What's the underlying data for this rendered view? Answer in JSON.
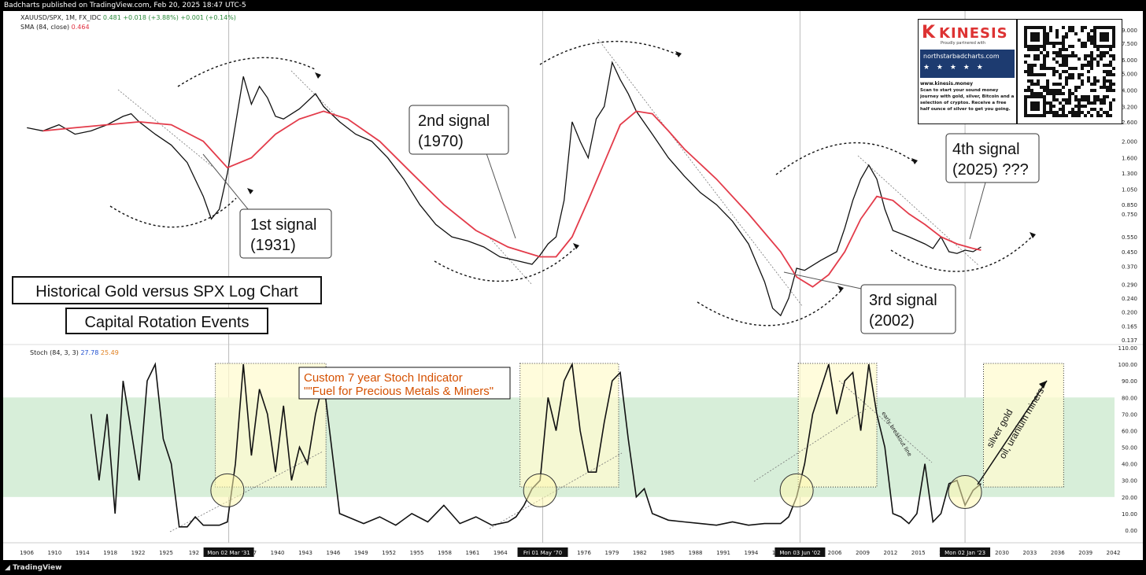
{
  "header": {
    "publisher": "Badcharts published on TradingView.com, Feb 20, 2025 18:47 UTC-5",
    "footer": "TradingView"
  },
  "legend": {
    "symbol": "XAUUSD/SPX, 1M, FX_IDC",
    "value": "0.481",
    "change": "+0.018 (+3.88%)",
    "change2": "+0.001 (+0.14%)",
    "sma_label": "SMA (84, close)",
    "sma_value": "0.464",
    "stoch_label": "Stoch (84, 3, 3)",
    "stoch_k": "27.78",
    "stoch_d": "25.49"
  },
  "annotations": {
    "title_box_1": "Historical Gold versus SPX Log Chart",
    "title_box_2": "Capital Rotation Events",
    "signal_1_line1": "1st signal",
    "signal_1_line2": "(1931)",
    "signal_2_line1": "2nd signal",
    "signal_2_line2": "(1970)",
    "signal_3_line1": "3rd signal",
    "signal_3_line2": "(2002)",
    "signal_4_line1": "4th signal",
    "signal_4_line2": "(2025) ???",
    "stoch_title_1": "Custom 7 year Stoch Indicator",
    "stoch_title_2": "\"\"Fuel for Precious Metals & Miners\"",
    "early_breakout": "early breakout line",
    "rotation_1": "silver gold",
    "rotation_2": "oil, uranium miners"
  },
  "ad": {
    "brand": "KINESIS",
    "brand_sub": "Proudly partnered with",
    "site": "northstarbadcharts.com",
    "stars": "★ ★ ★ ★ ★",
    "url": "www.kinesis.money",
    "description": "Scan to start your sound money journey with gold, silver, Bitcoin and a selection of cryptos. Receive a free half ounce of silver to get you going."
  },
  "chart_data": [
    {
      "type": "line",
      "name": "price-panel",
      "scale": "log",
      "y_tick_labels": [
        "9.000",
        "7.500",
        "6.000",
        "5.000",
        "4.000",
        "3.200",
        "2.600",
        "2.000",
        "1.600",
        "1.300",
        "1.050",
        "0.850",
        "0.750",
        "0.550",
        "0.450",
        "0.370",
        "0.290",
        "0.240",
        "0.200",
        "0.165",
        "0.137"
      ],
      "x_tick_labels": [
        "1906",
        "1910",
        "1914",
        "1918",
        "1922",
        "1925",
        "192",
        "34",
        "1937",
        "1940",
        "1943",
        "1946",
        "1949",
        "1952",
        "1955",
        "1958",
        "1961",
        "1964",
        "1967",
        "73",
        "1976",
        "1979",
        "1982",
        "1985",
        "1988",
        "1991",
        "1994",
        "1997",
        "2",
        "2006",
        "2009",
        "2012",
        "2015",
        "2018",
        "2027",
        "2030",
        "2033",
        "2036",
        "2039",
        "2042"
      ],
      "date_markers": [
        "Mon 02 Mar '31",
        "Fri 01 May '70",
        "Mon 03 Jun '02",
        "Mon 02 Jan '23"
      ],
      "series": [
        {
          "name": "XAUUSD/SPX",
          "x": [
            1906,
            1908,
            1910,
            1912,
            1914,
            1916,
            1918,
            1919,
            1920,
            1922,
            1924,
            1926,
            1928,
            1929,
            1930,
            1931,
            1932,
            1933,
            1934,
            1935,
            1936,
            1937,
            1938,
            1940,
            1942,
            1943,
            1945,
            1947,
            1949,
            1951,
            1953,
            1955,
            1957,
            1959,
            1961,
            1963,
            1965,
            1967,
            1969,
            1970,
            1971,
            1972,
            1973,
            1974,
            1975,
            1976,
            1977,
            1978,
            1979,
            1980,
            1981,
            1982,
            1984,
            1986,
            1988,
            1990,
            1992,
            1994,
            1996,
            1998,
            1999,
            2000,
            2001,
            2002,
            2003,
            2005,
            2007,
            2008,
            2009,
            2010,
            2011,
            2012,
            2013,
            2014,
            2016,
            2018,
            2019,
            2020,
            2021,
            2022,
            2023,
            2024,
            2025
          ],
          "y": [
            2.4,
            2.3,
            2.5,
            2.2,
            2.3,
            2.5,
            2.8,
            2.9,
            2.6,
            2.2,
            1.9,
            1.5,
            0.95,
            0.7,
            0.8,
            1.3,
            2.5,
            4.8,
            3.3,
            4.2,
            3.6,
            2.8,
            2.7,
            3.1,
            3.8,
            3.2,
            2.6,
            2.2,
            2.0,
            1.6,
            1.2,
            0.85,
            0.65,
            0.55,
            0.52,
            0.48,
            0.42,
            0.4,
            0.38,
            0.43,
            0.5,
            0.55,
            0.9,
            2.6,
            2.0,
            1.6,
            2.7,
            3.2,
            5.8,
            4.6,
            3.8,
            3.0,
            2.2,
            1.6,
            1.25,
            1.0,
            0.85,
            0.68,
            0.5,
            0.3,
            0.21,
            0.19,
            0.24,
            0.36,
            0.35,
            0.4,
            0.45,
            0.62,
            0.9,
            1.2,
            1.45,
            1.2,
            0.8,
            0.6,
            0.55,
            0.5,
            0.47,
            0.55,
            0.45,
            0.44,
            0.46,
            0.45,
            0.48
          ]
        },
        {
          "name": "SMA (84, close)",
          "x": [
            1908,
            1912,
            1916,
            1920,
            1924,
            1928,
            1931,
            1934,
            1937,
            1940,
            1943,
            1946,
            1950,
            1954,
            1958,
            1962,
            1966,
            1970,
            1972,
            1974,
            1976,
            1978,
            1980,
            1982,
            1984,
            1986,
            1988,
            1992,
            1996,
            2000,
            2002,
            2004,
            2006,
            2008,
            2010,
            2012,
            2014,
            2016,
            2018,
            2020,
            2022,
            2024,
            2025
          ],
          "y": [
            2.3,
            2.4,
            2.5,
            2.6,
            2.5,
            2.0,
            1.4,
            1.6,
            2.2,
            2.7,
            3.0,
            2.7,
            2.0,
            1.3,
            0.85,
            0.6,
            0.48,
            0.42,
            0.42,
            0.55,
            0.9,
            1.5,
            2.5,
            3.0,
            2.9,
            2.3,
            1.8,
            1.2,
            0.75,
            0.45,
            0.32,
            0.28,
            0.33,
            0.45,
            0.7,
            0.95,
            0.9,
            0.75,
            0.65,
            0.55,
            0.5,
            0.47,
            0.46
          ]
        }
      ]
    },
    {
      "type": "line",
      "name": "stoch-panel",
      "y_tick_labels": [
        "110.00",
        "100.00",
        "90.00",
        "80.00",
        "70.00",
        "60.00",
        "50.00",
        "40.00",
        "30.00",
        "20.00",
        "10.00",
        "0.00"
      ],
      "ylim": [
        0,
        110
      ],
      "band": [
        20,
        80
      ],
      "series": [
        {
          "name": "Stoch %K",
          "x": [
            1914,
            1915,
            1916,
            1917,
            1918,
            1919,
            1920,
            1921,
            1922,
            1923,
            1924,
            1925,
            1926,
            1927,
            1928,
            1929,
            1930,
            1931,
            1932,
            1933,
            1934,
            1935,
            1936,
            1937,
            1938,
            1939,
            1940,
            1941,
            1942,
            1943,
            1944,
            1945,
            1946,
            1948,
            1950,
            1952,
            1954,
            1956,
            1958,
            1960,
            1962,
            1964,
            1966,
            1967,
            1968,
            1969,
            1970,
            1971,
            1972,
            1973,
            1974,
            1975,
            1976,
            1977,
            1978,
            1979,
            1980,
            1981,
            1982,
            1983,
            1984,
            1986,
            1988,
            1990,
            1992,
            1994,
            1996,
            1998,
            2000,
            2001,
            2002,
            2003,
            2004,
            2005,
            2006,
            2007,
            2008,
            2009,
            2010,
            2011,
            2012,
            2013,
            2014,
            2015,
            2016,
            2017,
            2018,
            2019,
            2020,
            2021,
            2022,
            2023,
            2024,
            2025
          ],
          "y": [
            70,
            30,
            70,
            10,
            90,
            60,
            30,
            90,
            100,
            55,
            40,
            2,
            2,
            8,
            3,
            3,
            3,
            5,
            40,
            100,
            45,
            85,
            70,
            35,
            75,
            30,
            50,
            40,
            70,
            90,
            50,
            10,
            8,
            4,
            8,
            3,
            10,
            5,
            15,
            4,
            8,
            3,
            5,
            8,
            15,
            25,
            30,
            80,
            60,
            90,
            100,
            60,
            35,
            35,
            65,
            90,
            95,
            55,
            20,
            25,
            10,
            6,
            5,
            4,
            3,
            5,
            3,
            4,
            4,
            8,
            20,
            40,
            70,
            85,
            100,
            70,
            90,
            95,
            60,
            100,
            70,
            50,
            10,
            8,
            4,
            10,
            40,
            5,
            10,
            28,
            30,
            15,
            24,
            28
          ]
        }
      ]
    }
  ]
}
